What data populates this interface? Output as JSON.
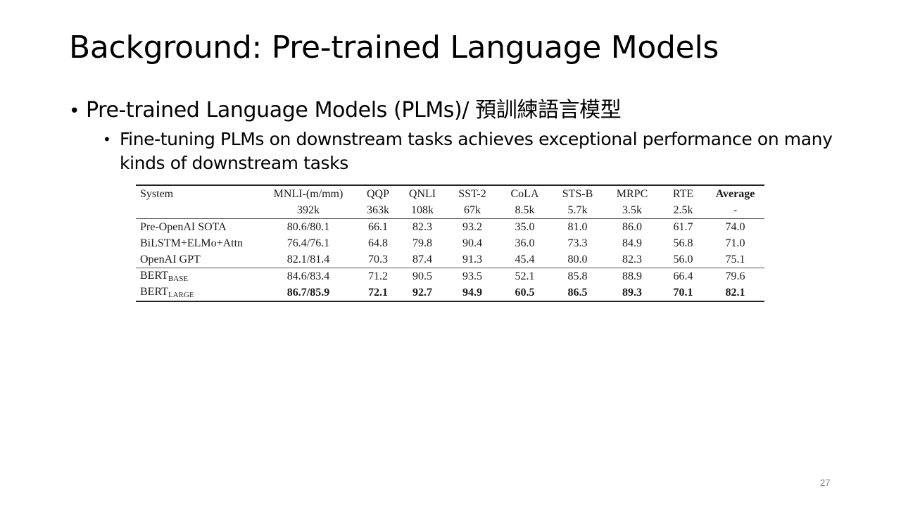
{
  "slide": {
    "title": "Background: Pre-trained Language Models",
    "bullet_1": "Pre-trained Language Models (PLMs)/ 預訓練語言模型",
    "bullet_1_1": "Fine-tuning PLMs on downstream tasks achieves exceptional performance on many kinds of downstream tasks",
    "bullet_glyph": "•",
    "page_number": "27"
  },
  "table": {
    "headers": [
      "System",
      "MNLI-(m/mm)",
      "QQP",
      "QNLI",
      "SST-2",
      "CoLA",
      "STS-B",
      "MRPC",
      "RTE",
      "Average"
    ],
    "sizes": [
      "",
      "392k",
      "363k",
      "108k",
      "67k",
      "8.5k",
      "5.7k",
      "3.5k",
      "2.5k",
      "-"
    ],
    "rows": [
      {
        "system": "Pre-OpenAI SOTA",
        "values": [
          "80.6/80.1",
          "66.1",
          "82.3",
          "93.2",
          "35.0",
          "81.0",
          "86.0",
          "61.7",
          "74.0"
        ]
      },
      {
        "system": "BiLSTM+ELMo+Attn",
        "values": [
          "76.4/76.1",
          "64.8",
          "79.8",
          "90.4",
          "36.0",
          "73.3",
          "84.9",
          "56.8",
          "71.0"
        ]
      },
      {
        "system": "OpenAI GPT",
        "values": [
          "82.1/81.4",
          "70.3",
          "87.4",
          "91.3",
          "45.4",
          "80.0",
          "82.3",
          "56.0",
          "75.1"
        ]
      },
      {
        "system": "BERT",
        "system_sub": "BASE",
        "values": [
          "84.6/83.4",
          "71.2",
          "90.5",
          "93.5",
          "52.1",
          "85.8",
          "88.9",
          "66.4",
          "79.6"
        ]
      },
      {
        "system": "BERT",
        "system_sub": "LARGE",
        "values": [
          "86.7/85.9",
          "72.1",
          "92.7",
          "94.9",
          "60.5",
          "86.5",
          "89.3",
          "70.1",
          "82.1"
        ]
      }
    ]
  }
}
